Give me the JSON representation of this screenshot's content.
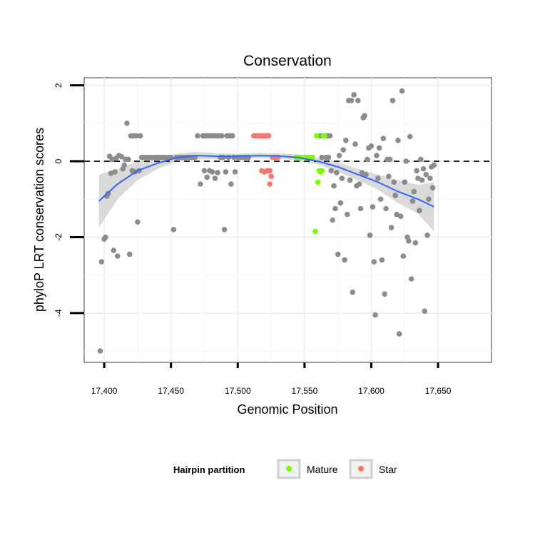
{
  "chart_data": {
    "type": "scatter",
    "title": "Conservation",
    "xlabel": "Genomic Position",
    "ylabel": "phyloP LRT conservation scores",
    "xlim": [
      17385,
      17690
    ],
    "ylim": [
      -5.3,
      2.2
    ],
    "x_ticks": [
      {
        "value": 17400,
        "label": "17,400"
      },
      {
        "value": 17450,
        "label": "17,450"
      },
      {
        "value": 17500,
        "label": "17,500"
      },
      {
        "value": 17550,
        "label": "17,550"
      },
      {
        "value": 17600,
        "label": "17,600"
      },
      {
        "value": 17650,
        "label": "17,650"
      }
    ],
    "y_ticks": [
      {
        "value": 2,
        "label": "2"
      },
      {
        "value": 0,
        "label": "0"
      },
      {
        "value": -2,
        "label": "-2"
      },
      {
        "value": -4,
        "label": "-4"
      }
    ],
    "hline": {
      "value": 0,
      "style": "dashed"
    },
    "legend": {
      "title": "Hairpin partition",
      "entries": [
        {
          "label": "Mature",
          "color": "#7CFC00"
        },
        {
          "label": "Star",
          "color": "#F8766D"
        }
      ]
    },
    "colors": {
      "other": "#8C8C8C",
      "mature": "#7CFC00",
      "star": "#F8766D",
      "smooth": "#3366FF",
      "band": "#D3D3D3"
    },
    "series": [
      {
        "name": "Other",
        "color": "#8C8C8C",
        "points": [
          [
            17397,
            -5.0
          ],
          [
            17398,
            -2.65
          ],
          [
            17400,
            -2.05
          ],
          [
            17401,
            -2.0
          ],
          [
            17402,
            -0.92
          ],
          [
            17403,
            -0.85
          ],
          [
            17404,
            0.13
          ],
          [
            17405,
            -0.32
          ],
          [
            17406,
            0.05
          ],
          [
            17407,
            -2.35
          ],
          [
            17408,
            -0.28
          ],
          [
            17409,
            0.08
          ],
          [
            17410,
            -2.5
          ],
          [
            17411,
            0.15
          ],
          [
            17413,
            0.12
          ],
          [
            17414,
            -0.2
          ],
          [
            17415,
            -0.1
          ],
          [
            17416,
            0.05
          ],
          [
            17417,
            1.0
          ],
          [
            17418,
            0.05
          ],
          [
            17419,
            -2.45
          ],
          [
            17420,
            0.67
          ],
          [
            17421,
            -0.25
          ],
          [
            17422,
            0.67
          ],
          [
            17423,
            -0.28
          ],
          [
            17424,
            0.67
          ],
          [
            17425,
            -1.6
          ],
          [
            17426,
            -0.25
          ],
          [
            17427,
            0.67
          ],
          [
            17428,
            0.1
          ],
          [
            17430,
            0.1
          ],
          [
            17432,
            0.1
          ],
          [
            17434,
            0.1
          ],
          [
            17436,
            0.1
          ],
          [
            17438,
            0.1
          ],
          [
            17440,
            0.1
          ],
          [
            17442,
            0.1
          ],
          [
            17444,
            0.1
          ],
          [
            17446,
            0.1
          ],
          [
            17448,
            0.1
          ],
          [
            17450,
            0.1
          ],
          [
            17452,
            -1.8
          ],
          [
            17454,
            0.1
          ],
          [
            17456,
            0.1
          ],
          [
            17458,
            0.1
          ],
          [
            17460,
            0.1
          ],
          [
            17462,
            0.1
          ],
          [
            17464,
            0.1
          ],
          [
            17466,
            0.1
          ],
          [
            17468,
            0.1
          ],
          [
            17470,
            0.67
          ],
          [
            17472,
            -0.6
          ],
          [
            17474,
            0.67
          ],
          [
            17475,
            -0.25
          ],
          [
            17476,
            0.67
          ],
          [
            17477,
            -0.42
          ],
          [
            17478,
            0.67
          ],
          [
            17479,
            -0.25
          ],
          [
            17480,
            0.67
          ],
          [
            17481,
            -0.28
          ],
          [
            17482,
            0.67
          ],
          [
            17483,
            -0.45
          ],
          [
            17484,
            0.67
          ],
          [
            17485,
            -0.3
          ],
          [
            17486,
            0.67
          ],
          [
            17487,
            0.1
          ],
          [
            17488,
            0.67
          ],
          [
            17489,
            0.1
          ],
          [
            17490,
            -1.8
          ],
          [
            17491,
            -0.28
          ],
          [
            17492,
            0.67
          ],
          [
            17493,
            0.1
          ],
          [
            17494,
            0.67
          ],
          [
            17495,
            -0.6
          ],
          [
            17496,
            0.67
          ],
          [
            17497,
            0.1
          ],
          [
            17498,
            -0.28
          ],
          [
            17500,
            0.1
          ],
          [
            17502,
            0.1
          ],
          [
            17504,
            0.1
          ],
          [
            17506,
            0.1
          ],
          [
            17508,
            0.1
          ],
          [
            17562,
            0.67
          ],
          [
            17563,
            0.1
          ],
          [
            17564,
            0.67
          ],
          [
            17566,
            0.1
          ],
          [
            17567,
            0.67
          ],
          [
            17568,
            0.1
          ],
          [
            17569,
            0.67
          ],
          [
            17570,
            -0.25
          ],
          [
            17571,
            -1.55
          ],
          [
            17572,
            -0.65
          ],
          [
            17573,
            -1.25
          ],
          [
            17574,
            -0.3
          ],
          [
            17575,
            -2.45
          ],
          [
            17576,
            0.15
          ],
          [
            17577,
            -1.1
          ],
          [
            17578,
            -0.45
          ],
          [
            17579,
            0.3
          ],
          [
            17580,
            -2.6
          ],
          [
            17581,
            0.55
          ],
          [
            17582,
            -1.4
          ],
          [
            17583,
            1.6
          ],
          [
            17584,
            -0.5
          ],
          [
            17585,
            1.6
          ],
          [
            17586,
            -3.45
          ],
          [
            17587,
            1.75
          ],
          [
            17588,
            0.45
          ],
          [
            17589,
            -0.65
          ],
          [
            17590,
            1.6
          ],
          [
            17591,
            -0.6
          ],
          [
            17592,
            -1.25
          ],
          [
            17593,
            -0.3
          ],
          [
            17594,
            1.15
          ],
          [
            17595,
            1.2
          ],
          [
            17596,
            -0.35
          ],
          [
            17597,
            0.05
          ],
          [
            17598,
            0.35
          ],
          [
            17599,
            -1.95
          ],
          [
            17600,
            0.4
          ],
          [
            17601,
            -1.2
          ],
          [
            17602,
            -2.65
          ],
          [
            17603,
            -4.05
          ],
          [
            17604,
            0.15
          ],
          [
            17605,
            -0.45
          ],
          [
            17606,
            0.35
          ],
          [
            17607,
            -1.0
          ],
          [
            17608,
            -2.6
          ],
          [
            17609,
            0.6
          ],
          [
            17610,
            -3.5
          ],
          [
            17611,
            -1.25
          ],
          [
            17612,
            0.05
          ],
          [
            17613,
            -0.4
          ],
          [
            17614,
            0.05
          ],
          [
            17615,
            -1.75
          ],
          [
            17616,
            1.6
          ],
          [
            17617,
            -0.55
          ],
          [
            17618,
            -0.9
          ],
          [
            17619,
            -1.4
          ],
          [
            17620,
            0.55
          ],
          [
            17621,
            -4.55
          ],
          [
            17622,
            -1.45
          ],
          [
            17623,
            1.85
          ],
          [
            17624,
            -2.5
          ],
          [
            17625,
            -0.55
          ],
          [
            17626,
            0.0
          ],
          [
            17627,
            -2.0
          ],
          [
            17628,
            -2.1
          ],
          [
            17629,
            0.65
          ],
          [
            17630,
            -3.1
          ],
          [
            17631,
            -1.05
          ],
          [
            17632,
            -0.8
          ],
          [
            17633,
            -2.15
          ],
          [
            17634,
            -0.25
          ],
          [
            17635,
            -0.45
          ],
          [
            17636,
            -1.3
          ],
          [
            17637,
            0.05
          ],
          [
            17638,
            -0.5
          ],
          [
            17639,
            -0.2
          ],
          [
            17640,
            -3.95
          ],
          [
            17641,
            -0.35
          ],
          [
            17642,
            -1.95
          ],
          [
            17643,
            -1.0
          ],
          [
            17644,
            -0.45
          ],
          [
            17645,
            -0.15
          ],
          [
            17646,
            -0.7
          ],
          [
            17647,
            -0.1
          ]
        ]
      },
      {
        "name": "Star",
        "color": "#F8766D",
        "points": [
          [
            17512,
            0.67
          ],
          [
            17513,
            0.67
          ],
          [
            17514,
            0.67
          ],
          [
            17515,
            0.67
          ],
          [
            17516,
            0.67
          ],
          [
            17517,
            0.67
          ],
          [
            17518,
            0.67
          ],
          [
            17519,
            0.67
          ],
          [
            17520,
            0.67
          ],
          [
            17521,
            0.67
          ],
          [
            17522,
            0.67
          ],
          [
            17523,
            0.67
          ],
          [
            17518,
            -0.25
          ],
          [
            17520,
            -0.28
          ],
          [
            17522,
            -0.25
          ],
          [
            17524,
            -0.25
          ],
          [
            17525,
            -0.4
          ],
          [
            17524,
            -0.6
          ],
          [
            17526,
            0.1
          ],
          [
            17528,
            0.1
          ],
          [
            17530,
            0.1
          ]
        ]
      },
      {
        "name": "Mature",
        "color": "#7CFC00",
        "points": [
          [
            17544,
            0.1
          ],
          [
            17546,
            0.1
          ],
          [
            17548,
            0.1
          ],
          [
            17550,
            0.1
          ],
          [
            17552,
            0.1
          ],
          [
            17554,
            0.1
          ],
          [
            17556,
            0.1
          ],
          [
            17558,
            -1.85
          ],
          [
            17559,
            0.67
          ],
          [
            17560,
            -0.55
          ],
          [
            17561,
            -0.25
          ],
          [
            17562,
            -0.28
          ],
          [
            17563,
            -0.25
          ],
          [
            17564,
            0.67
          ],
          [
            17565,
            0.67
          ]
        ]
      }
    ],
    "smooth": {
      "name": "loess fit",
      "x": [
        17396,
        17410,
        17425,
        17440,
        17455,
        17470,
        17485,
        17500,
        17515,
        17530,
        17545,
        17560,
        17575,
        17590,
        17605,
        17620,
        17635,
        17647
      ],
      "y": [
        -1.05,
        -0.6,
        -0.25,
        -0.05,
        0.1,
        0.15,
        0.13,
        0.13,
        0.15,
        0.14,
        0.1,
        0.0,
        -0.15,
        -0.35,
        -0.55,
        -0.8,
        -1.0,
        -1.2
      ],
      "lo": [
        -1.75,
        -1.0,
        -0.5,
        -0.2,
        0.0,
        0.05,
        0.05,
        0.06,
        0.08,
        0.07,
        0.02,
        -0.08,
        -0.28,
        -0.5,
        -0.75,
        -1.1,
        -1.38,
        -1.85
      ],
      "hi": [
        -0.35,
        -0.2,
        0.0,
        0.1,
        0.2,
        0.25,
        0.21,
        0.2,
        0.22,
        0.21,
        0.18,
        0.08,
        -0.02,
        -0.2,
        -0.35,
        -0.5,
        -0.62,
        -0.55
      ]
    }
  }
}
